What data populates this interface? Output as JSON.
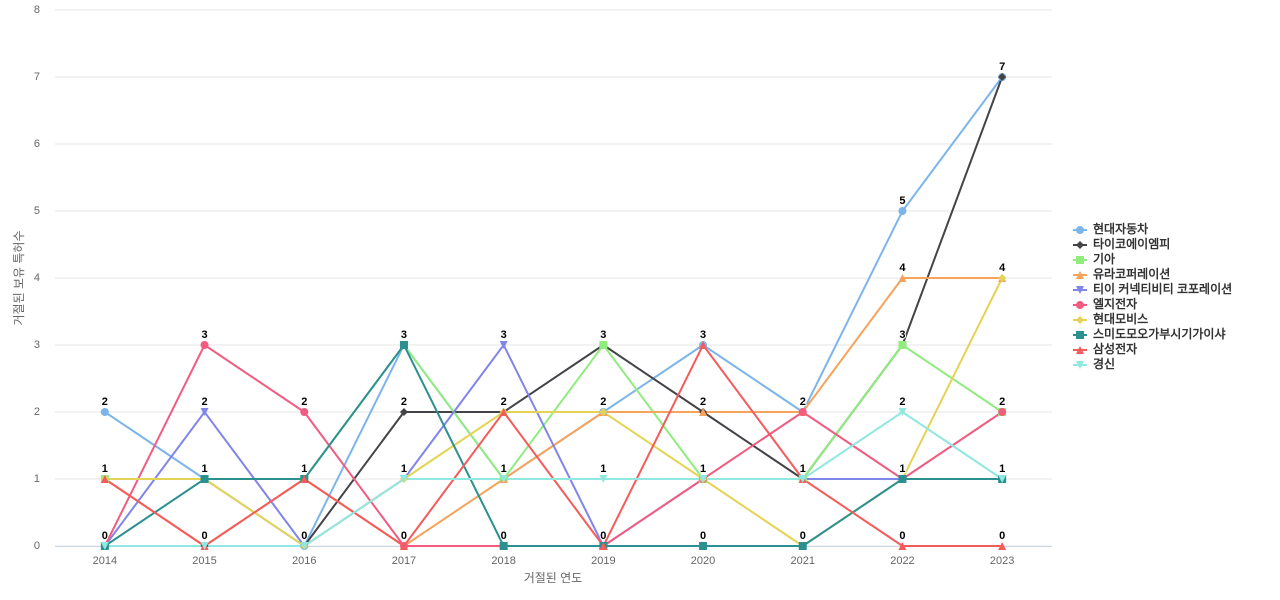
{
  "chart_data": {
    "type": "line",
    "x_label": "거절된 연도",
    "y_label": "거절된 보유 특허수",
    "categories": [
      "2014",
      "2015",
      "2016",
      "2017",
      "2018",
      "2019",
      "2020",
      "2021",
      "2022",
      "2023"
    ],
    "ylim": [
      0,
      8
    ],
    "yticks": [
      0,
      1,
      2,
      3,
      4,
      5,
      6,
      7,
      8
    ],
    "grid": true,
    "legend": "right",
    "series": [
      {
        "name": "현대자동차",
        "color": "#7cb5ec",
        "symbol": "circle",
        "values": [
          2,
          1,
          0,
          3,
          1,
          2,
          3,
          2,
          5,
          7
        ]
      },
      {
        "name": "타이코에이엠피",
        "color": "#434348",
        "symbol": "diamond",
        "values": [
          0,
          0,
          0,
          2,
          2,
          3,
          2,
          1,
          3,
          7
        ]
      },
      {
        "name": "기아",
        "color": "#90ed7d",
        "symbol": "square",
        "values": [
          1,
          1,
          1,
          3,
          1,
          3,
          1,
          1,
          3,
          2
        ]
      },
      {
        "name": "유라코퍼레이션",
        "color": "#f7a35c",
        "symbol": "triangle",
        "values": [
          1,
          0,
          1,
          0,
          1,
          2,
          2,
          2,
          4,
          4
        ]
      },
      {
        "name": "티이 커넥티비티 코포레이션",
        "color": "#8085e9",
        "symbol": "triangle-down",
        "values": [
          0,
          2,
          0,
          1,
          3,
          0,
          1,
          1,
          1,
          1
        ]
      },
      {
        "name": "엘지전자",
        "color": "#f15c80",
        "symbol": "circle",
        "values": [
          0,
          3,
          2,
          0,
          0,
          0,
          1,
          2,
          1,
          2
        ]
      },
      {
        "name": "현대모비스",
        "color": "#e4d354",
        "symbol": "diamond",
        "values": [
          1,
          1,
          0,
          1,
          2,
          2,
          1,
          0,
          1,
          4
        ]
      },
      {
        "name": "스미도모오가부시기가이샤",
        "color": "#2b908f",
        "symbol": "square",
        "values": [
          0,
          1,
          1,
          3,
          0,
          0,
          0,
          0,
          1,
          1
        ]
      },
      {
        "name": "삼성전자",
        "color": "#f45b5b",
        "symbol": "triangle",
        "values": [
          1,
          0,
          1,
          0,
          2,
          0,
          3,
          1,
          0,
          0
        ]
      },
      {
        "name": "경신",
        "color": "#91e8e1",
        "symbol": "triangle-down",
        "values": [
          0,
          0,
          0,
          1,
          1,
          1,
          1,
          1,
          2,
          1
        ]
      }
    ]
  }
}
